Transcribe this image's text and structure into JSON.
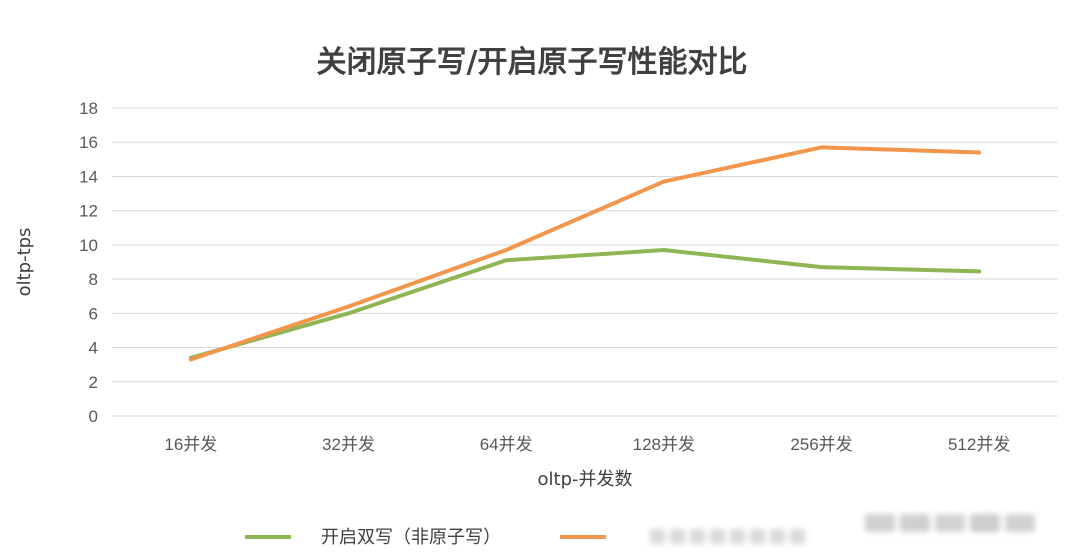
{
  "chart_data": {
    "type": "line",
    "title": "关闭原子写/开启原子写性能对比",
    "xlabel": "oltp-并发数",
    "ylabel": "oltp-tps",
    "categories": [
      "16并发",
      "32并发",
      "64并发",
      "128并发",
      "256并发",
      "512并发"
    ],
    "ylim": [
      0,
      18
    ],
    "yticks": [
      0,
      2,
      4,
      6,
      8,
      10,
      12,
      14,
      16,
      18
    ],
    "grid": true,
    "legend_position": "bottom",
    "series": [
      {
        "name": "开启双写（非原子写）",
        "color": "#8fb654",
        "values": [
          3.4,
          6.0,
          9.1,
          9.7,
          8.7,
          8.45
        ]
      },
      {
        "name": "",
        "color": "#f1964b",
        "values": [
          3.3,
          6.4,
          9.7,
          13.7,
          15.7,
          15.4
        ]
      }
    ]
  }
}
